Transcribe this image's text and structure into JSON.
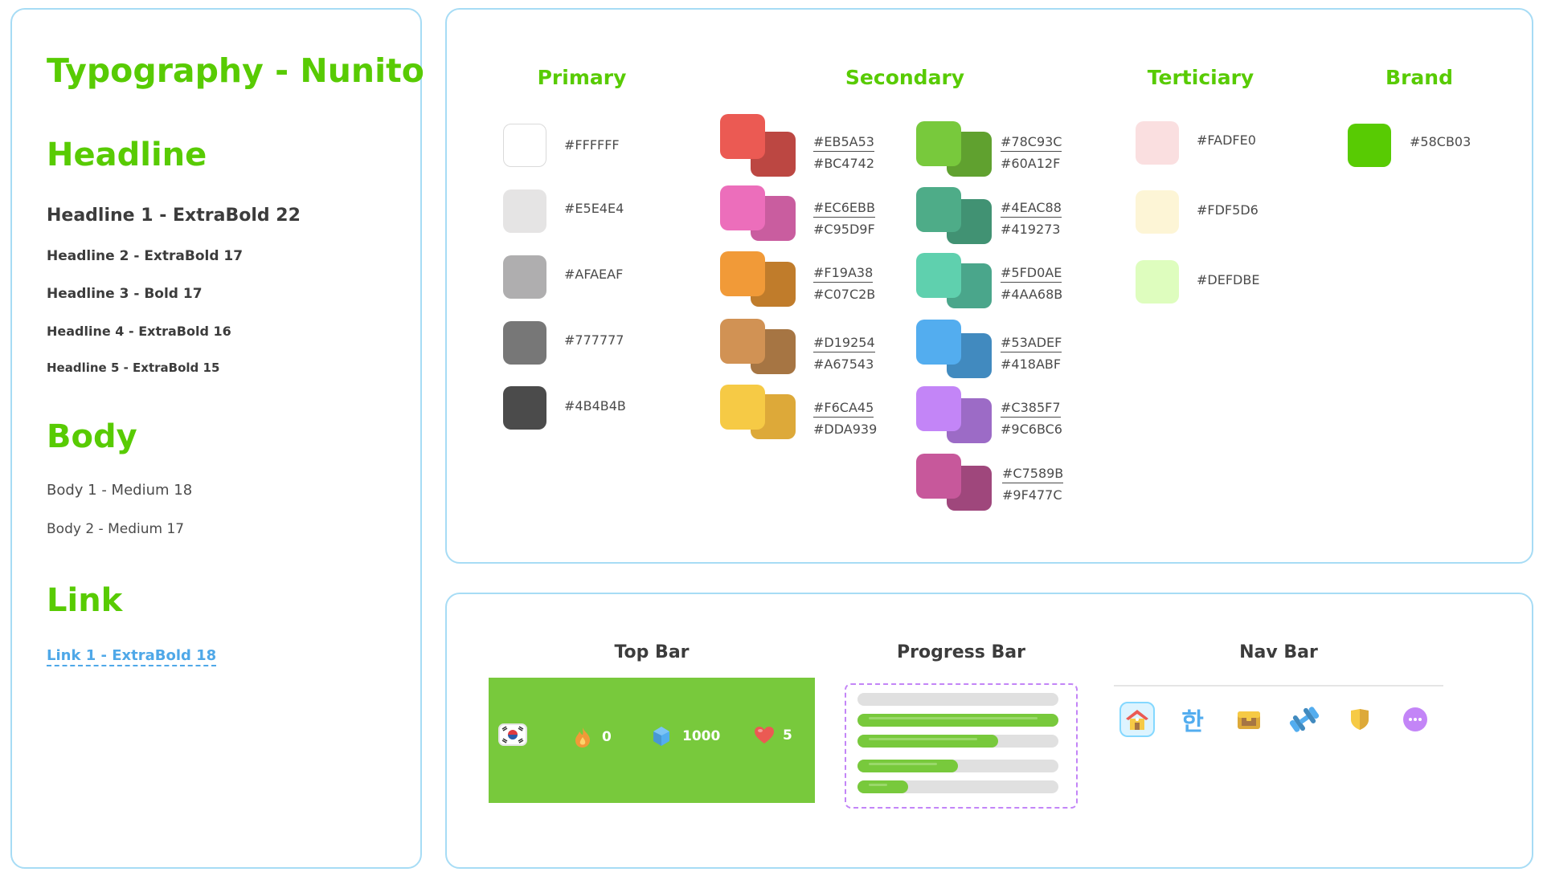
{
  "typography": {
    "title": "Typography - Nunito",
    "headline_section": "Headline",
    "headlines": [
      "Headline 1 - ExtraBold 22",
      "Headline 2 - ExtraBold 17",
      "Headline 3 - Bold 17",
      "Headline 4 - ExtraBold 16",
      "Headline 5 - ExtraBold 15"
    ],
    "body_section": "Body",
    "bodies": [
      "Body 1 - Medium 18",
      "Body 2 - Medium 17"
    ],
    "link_section": "Link",
    "link1": "Link 1 - ExtraBold 18"
  },
  "colors": {
    "primary": {
      "title": "Primary",
      "swatches": [
        {
          "hex": "#FFFFFF"
        },
        {
          "hex": "#E5E4E4"
        },
        {
          "hex": "#AFAEAF"
        },
        {
          "hex": "#777777"
        },
        {
          "hex": "#4B4B4B"
        }
      ]
    },
    "secondary": {
      "title": "Secondary",
      "pairs_left": [
        {
          "front": "#EB5A53",
          "back": "#BC4742"
        },
        {
          "front": "#EC6EBB",
          "back": "#C95D9F"
        },
        {
          "front": "#F19A38",
          "back": "#C07C2B"
        },
        {
          "front": "#D19254",
          "back": "#A67543"
        },
        {
          "front": "#F6CA45",
          "back": "#DDA939"
        }
      ],
      "pairs_right": [
        {
          "front": "#78C93C",
          "back": "#60A12F"
        },
        {
          "front": "#4EAC88",
          "back": "#419273"
        },
        {
          "front": "#5FD0AE",
          "back": "#4AA68B"
        },
        {
          "front": "#53ADEF",
          "back": "#418ABF"
        },
        {
          "front": "#C385F7",
          "back": "#9C6BC6"
        },
        {
          "front": "#C7589B",
          "back": "#9F477C"
        }
      ]
    },
    "tertiary": {
      "title": "Terticiary",
      "swatches": [
        {
          "hex": "#FADFE0"
        },
        {
          "hex": "#FDF5D6"
        },
        {
          "hex": "#DEFDBE"
        }
      ]
    },
    "brand": {
      "title": "Brand",
      "swatches": [
        {
          "hex": "#58CB03"
        }
      ]
    }
  },
  "components": {
    "topbar": {
      "title": "Top Bar",
      "streak": "0",
      "gems": "1000",
      "hearts": "5",
      "background": "#78C93C"
    },
    "progressbar": {
      "title": "Progress Bar",
      "levels": [
        0,
        1,
        0.7,
        0.5,
        0.25
      ]
    },
    "navbar": {
      "title": "Nav Bar",
      "items": [
        "home-icon",
        "hangul-icon",
        "treasure-chest-icon",
        "dumbbell-icon",
        "shield-icon",
        "more-icon"
      ],
      "hangul": "한"
    }
  }
}
